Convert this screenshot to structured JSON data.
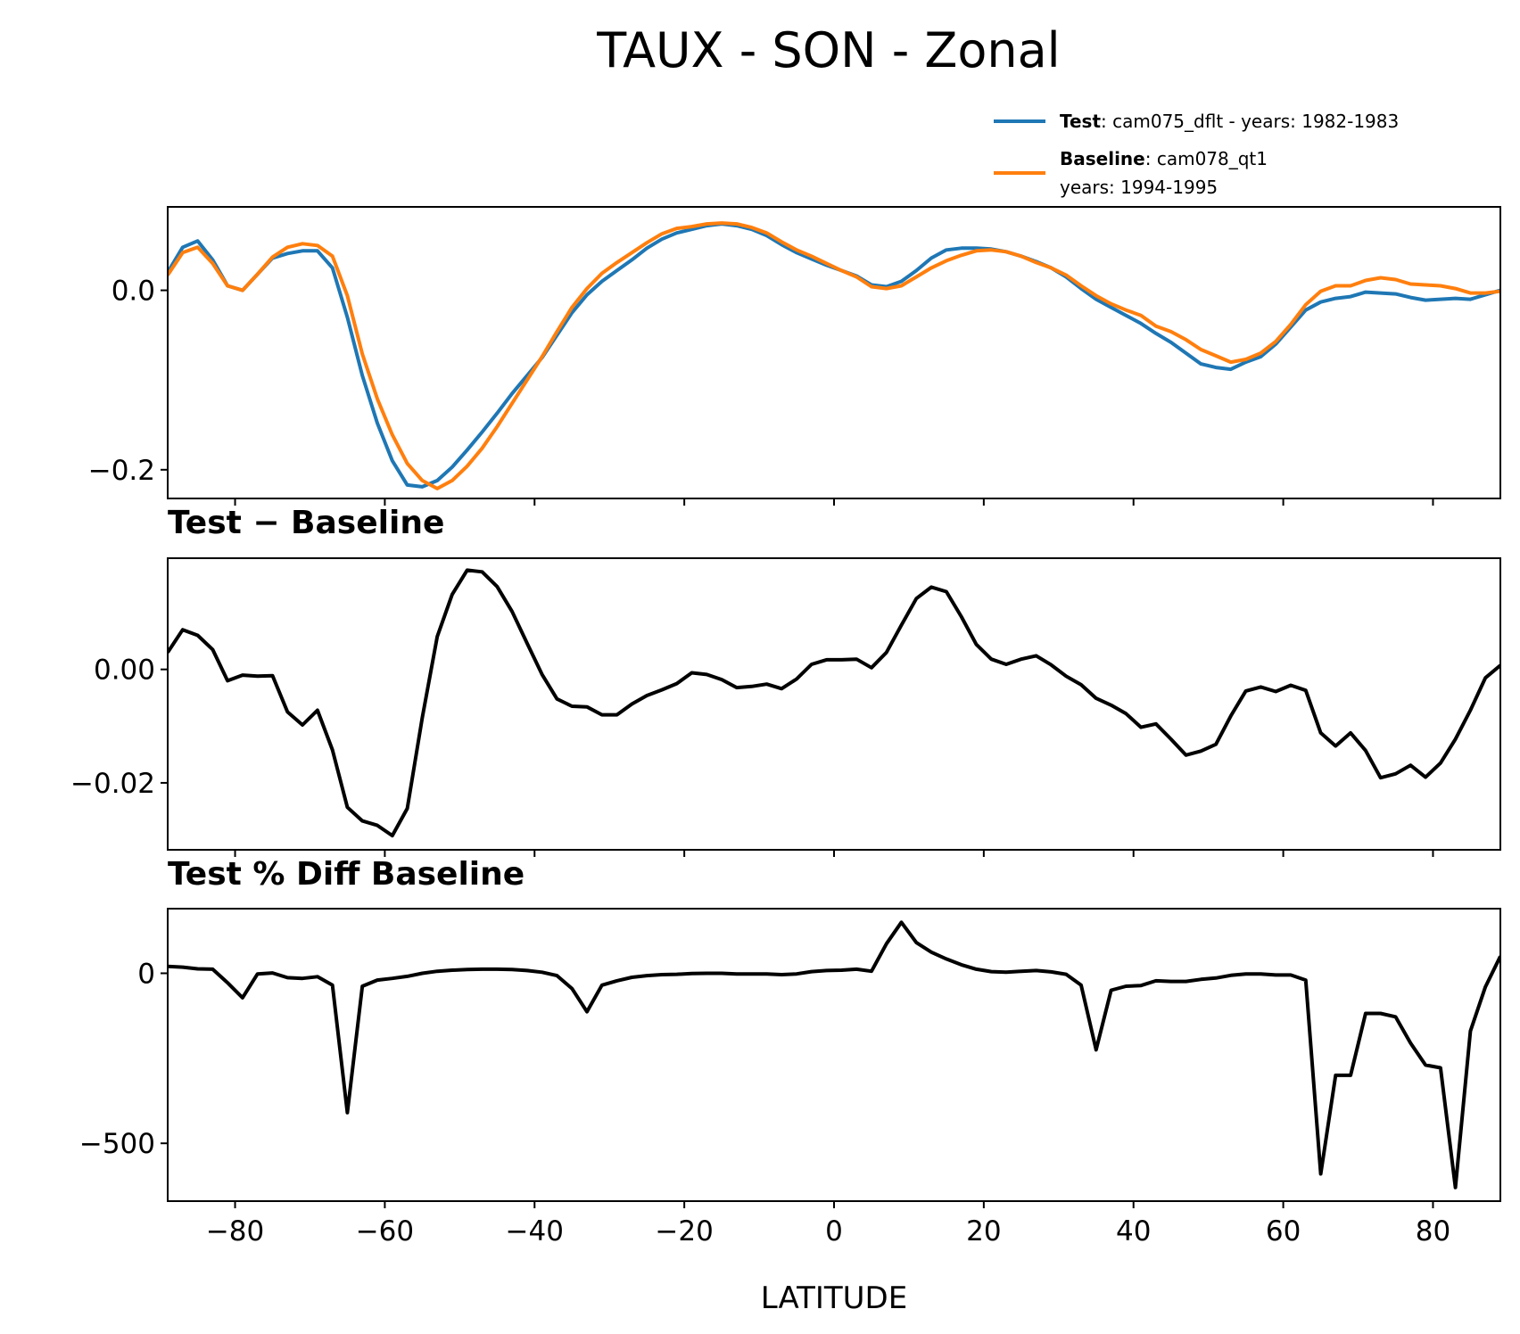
{
  "chart_data": {
    "type": "line",
    "title": "TAUX - SON - Zonal",
    "xlabel": "LATITUDE",
    "xlim": [
      -89,
      89
    ],
    "xticks": [
      -80,
      -60,
      -40,
      -20,
      0,
      20,
      40,
      60,
      80
    ],
    "xtick_labels": [
      "−80",
      "−60",
      "−40",
      "−20",
      "0",
      "20",
      "40",
      "60",
      "80"
    ],
    "legend": {
      "placement": "top-right",
      "entries": [
        {
          "bold": "Test",
          "text": ": cam075_dflt - years: 1982-1983",
          "text2": "",
          "color": "#1f77b4"
        },
        {
          "bold": "Baseline",
          "text": ": cam078_qt1",
          "text2": "years: 1994-1995",
          "color": "#ff7f0e"
        }
      ]
    },
    "panels": [
      {
        "id": "top",
        "title": "",
        "ylim": [
          -0.232,
          0.093
        ],
        "yticks": [
          0.0,
          -0.2
        ],
        "ytick_labels": [
          "0.0",
          "−0.2"
        ],
        "series": [
          {
            "name": "Test",
            "color": "#1f77b4",
            "x": [
              -89,
              -87,
              -85,
              -83,
              -81,
              -79,
              -77,
              -75,
              -73,
              -71,
              -69,
              -67,
              -65,
              -63,
              -61,
              -59,
              -57,
              -55,
              -53,
              -51,
              -49,
              -47,
              -45,
              -43,
              -41,
              -39,
              -37,
              -35,
              -33,
              -31,
              -29,
              -27,
              -25,
              -23,
              -21,
              -19,
              -17,
              -15,
              -13,
              -11,
              -9,
              -7,
              -5,
              -3,
              -1,
              1,
              3,
              5,
              7,
              9,
              11,
              13,
              15,
              17,
              19,
              21,
              23,
              25,
              27,
              29,
              31,
              33,
              35,
              37,
              39,
              41,
              43,
              45,
              47,
              49,
              51,
              53,
              55,
              57,
              59,
              61,
              63,
              65,
              67,
              69,
              71,
              73,
              75,
              77,
              79,
              81,
              83,
              85,
              87,
              89
            ],
            "y": [
              0.02,
              0.048,
              0.055,
              0.034,
              0.005,
              0.0,
              0.018,
              0.036,
              0.041,
              0.044,
              0.044,
              0.025,
              -0.03,
              -0.095,
              -0.148,
              -0.19,
              -0.217,
              -0.219,
              -0.212,
              -0.197,
              -0.178,
              -0.158,
              -0.137,
              -0.115,
              -0.095,
              -0.075,
              -0.05,
              -0.025,
              -0.005,
              0.01,
              0.022,
              0.034,
              0.047,
              0.057,
              0.064,
              0.068,
              0.072,
              0.074,
              0.072,
              0.068,
              0.061,
              0.051,
              0.042,
              0.035,
              0.028,
              0.022,
              0.016,
              0.006,
              0.004,
              0.01,
              0.022,
              0.036,
              0.045,
              0.047,
              0.047,
              0.046,
              0.043,
              0.038,
              0.032,
              0.025,
              0.015,
              0.002,
              -0.01,
              -0.019,
              -0.028,
              -0.037,
              -0.048,
              -0.058,
              -0.07,
              -0.082,
              -0.086,
              -0.088,
              -0.08,
              -0.074,
              -0.06,
              -0.041,
              -0.022,
              -0.013,
              -0.009,
              -0.007,
              -0.002,
              -0.003,
              -0.004,
              -0.008,
              -0.011,
              -0.01,
              -0.009,
              -0.01,
              -0.005,
              0.0
            ]
          },
          {
            "name": "Baseline",
            "color": "#ff7f0e",
            "x": [
              -89,
              -87,
              -85,
              -83,
              -81,
              -79,
              -77,
              -75,
              -73,
              -71,
              -69,
              -67,
              -65,
              -63,
              -61,
              -59,
              -57,
              -55,
              -53,
              -51,
              -49,
              -47,
              -45,
              -43,
              -41,
              -39,
              -37,
              -35,
              -33,
              -31,
              -29,
              -27,
              -25,
              -23,
              -21,
              -19,
              -17,
              -15,
              -13,
              -11,
              -9,
              -7,
              -5,
              -3,
              -1,
              1,
              3,
              5,
              7,
              9,
              11,
              13,
              15,
              17,
              19,
              21,
              23,
              25,
              27,
              29,
              31,
              33,
              35,
              37,
              39,
              41,
              43,
              45,
              47,
              49,
              51,
              53,
              55,
              57,
              59,
              61,
              63,
              65,
              67,
              69,
              71,
              73,
              75,
              77,
              79,
              81,
              83,
              85,
              87,
              89
            ],
            "y": [
              0.017,
              0.042,
              0.048,
              0.03,
              0.005,
              0.0,
              0.018,
              0.037,
              0.048,
              0.052,
              0.05,
              0.038,
              -0.006,
              -0.071,
              -0.121,
              -0.161,
              -0.193,
              -0.212,
              -0.221,
              -0.212,
              -0.196,
              -0.176,
              -0.152,
              -0.126,
              -0.1,
              -0.074,
              -0.046,
              -0.019,
              0.002,
              0.019,
              0.031,
              0.042,
              0.053,
              0.063,
              0.069,
              0.071,
              0.074,
              0.075,
              0.074,
              0.07,
              0.064,
              0.054,
              0.045,
              0.038,
              0.03,
              0.022,
              0.015,
              0.004,
              0.002,
              0.005,
              0.015,
              0.025,
              0.033,
              0.039,
              0.044,
              0.045,
              0.043,
              0.038,
              0.031,
              0.025,
              0.017,
              0.005,
              -0.006,
              -0.015,
              -0.022,
              -0.028,
              -0.04,
              -0.046,
              -0.055,
              -0.066,
              -0.073,
              -0.08,
              -0.077,
              -0.07,
              -0.057,
              -0.038,
              -0.016,
              -0.001,
              0.005,
              0.005,
              0.011,
              0.014,
              0.012,
              0.007,
              0.006,
              0.005,
              0.002,
              -0.003,
              -0.003,
              -0.001
            ]
          }
        ]
      },
      {
        "id": "diff",
        "title": "Test − Baseline",
        "ylim": [
          -0.0318,
          0.0196
        ],
        "yticks": [
          0.0,
          -0.02
        ],
        "ytick_labels": [
          "0.00",
          "−0.02"
        ],
        "series": [
          {
            "name": "",
            "color": "#000000",
            "x": [
              -89,
              -87,
              -85,
              -83,
              -81,
              -79,
              -77,
              -75,
              -73,
              -71,
              -69,
              -67,
              -65,
              -63,
              -61,
              -59,
              -57,
              -55,
              -53,
              -51,
              -49,
              -47,
              -45,
              -43,
              -41,
              -39,
              -37,
              -35,
              -33,
              -31,
              -29,
              -27,
              -25,
              -23,
              -21,
              -19,
              -17,
              -15,
              -13,
              -11,
              -9,
              -7,
              -5,
              -3,
              -1,
              1,
              3,
              5,
              7,
              9,
              11,
              13,
              15,
              17,
              19,
              21,
              23,
              25,
              27,
              29,
              31,
              33,
              35,
              37,
              39,
              41,
              43,
              45,
              47,
              49,
              51,
              53,
              55,
              57,
              59,
              61,
              63,
              65,
              67,
              69,
              71,
              73,
              75,
              77,
              79,
              81,
              83,
              85,
              87,
              89
            ],
            "y": [
              0.003,
              0.007,
              0.006,
              0.0035,
              -0.002,
              -0.001,
              -0.0012,
              -0.0011,
              -0.0075,
              -0.0098,
              -0.0072,
              -0.0142,
              -0.0243,
              -0.0267,
              -0.0275,
              -0.0293,
              -0.0245,
              -0.0085,
              0.0058,
              0.0132,
              0.0175,
              0.0172,
              0.0146,
              0.0102,
              0.0046,
              -0.0009,
              -0.0052,
              -0.0065,
              -0.0066,
              -0.008,
              -0.008,
              -0.0061,
              -0.0046,
              -0.0036,
              -0.0025,
              -0.0006,
              -0.0009,
              -0.0018,
              -0.0032,
              -0.003,
              -0.0026,
              -0.0034,
              -0.0017,
              0.0009,
              0.0017,
              0.0017,
              0.0018,
              0.0003,
              0.003,
              0.0078,
              0.0125,
              0.0145,
              0.0137,
              0.0093,
              0.0044,
              0.0018,
              0.0009,
              0.0018,
              0.0024,
              0.0008,
              -0.0012,
              -0.0027,
              -0.0051,
              -0.0063,
              -0.0078,
              -0.0102,
              -0.0096,
              -0.0123,
              -0.0151,
              -0.0144,
              -0.0132,
              -0.0082,
              -0.0038,
              -0.0031,
              -0.0039,
              -0.0028,
              -0.0037,
              -0.0112,
              -0.0135,
              -0.0112,
              -0.0143,
              -0.0191,
              -0.0184,
              -0.0169,
              -0.019,
              -0.0165,
              -0.0123,
              -0.0072,
              -0.0015,
              0.0007
            ]
          }
        ]
      },
      {
        "id": "pct",
        "title": "Test % Diff Baseline",
        "ylim": [
          -670,
          190
        ],
        "yticks": [
          0,
          -500
        ],
        "ytick_labels": [
          "0",
          "−500"
        ],
        "series": [
          {
            "name": "",
            "color": "#000000",
            "x": [
              -89,
              -87,
              -85,
              -83,
              -81,
              -79,
              -77,
              -75,
              -73,
              -71,
              -69,
              -67,
              -65,
              -63,
              -61,
              -59,
              -57,
              -55,
              -53,
              -51,
              -49,
              -47,
              -45,
              -43,
              -41,
              -39,
              -37,
              -35,
              -33,
              -31,
              -29,
              -27,
              -25,
              -23,
              -21,
              -19,
              -17,
              -15,
              -13,
              -11,
              -9,
              -7,
              -5,
              -3,
              -1,
              1,
              3,
              5,
              7,
              9,
              11,
              13,
              15,
              17,
              19,
              21,
              23,
              25,
              27,
              29,
              31,
              33,
              35,
              37,
              39,
              41,
              43,
              45,
              47,
              49,
              51,
              53,
              55,
              57,
              59,
              61,
              63,
              65,
              67,
              69,
              71,
              73,
              75,
              77,
              79,
              81,
              83,
              85,
              87,
              89
            ],
            "y": [
              20,
              18,
              13,
              12,
              -28,
              -72,
              -2,
              1,
              -13,
              -15,
              -10,
              -35,
              -410,
              -38,
              -20,
              -15,
              -9,
              0,
              6,
              9,
              11,
              12,
              12,
              11,
              8,
              3,
              -7,
              -45,
              -113,
              -35,
              -22,
              -12,
              -7,
              -4,
              -3,
              -1,
              0,
              0,
              -2,
              -2,
              -2,
              -4,
              -2,
              5,
              8,
              9,
              12,
              6,
              87,
              150,
              90,
              62,
              42,
              25,
              12,
              5,
              3,
              6,
              8,
              4,
              -3,
              -35,
              -225,
              -50,
              -38,
              -36,
              -22,
              -24,
              -24,
              -18,
              -14,
              -6,
              -2,
              -2,
              -5,
              -5,
              -20,
              -590,
              -300,
              -300,
              -118,
              -118,
              -128,
              -205,
              -270,
              -278,
              -630,
              -170,
              -40,
              50
            ]
          }
        ]
      }
    ]
  }
}
